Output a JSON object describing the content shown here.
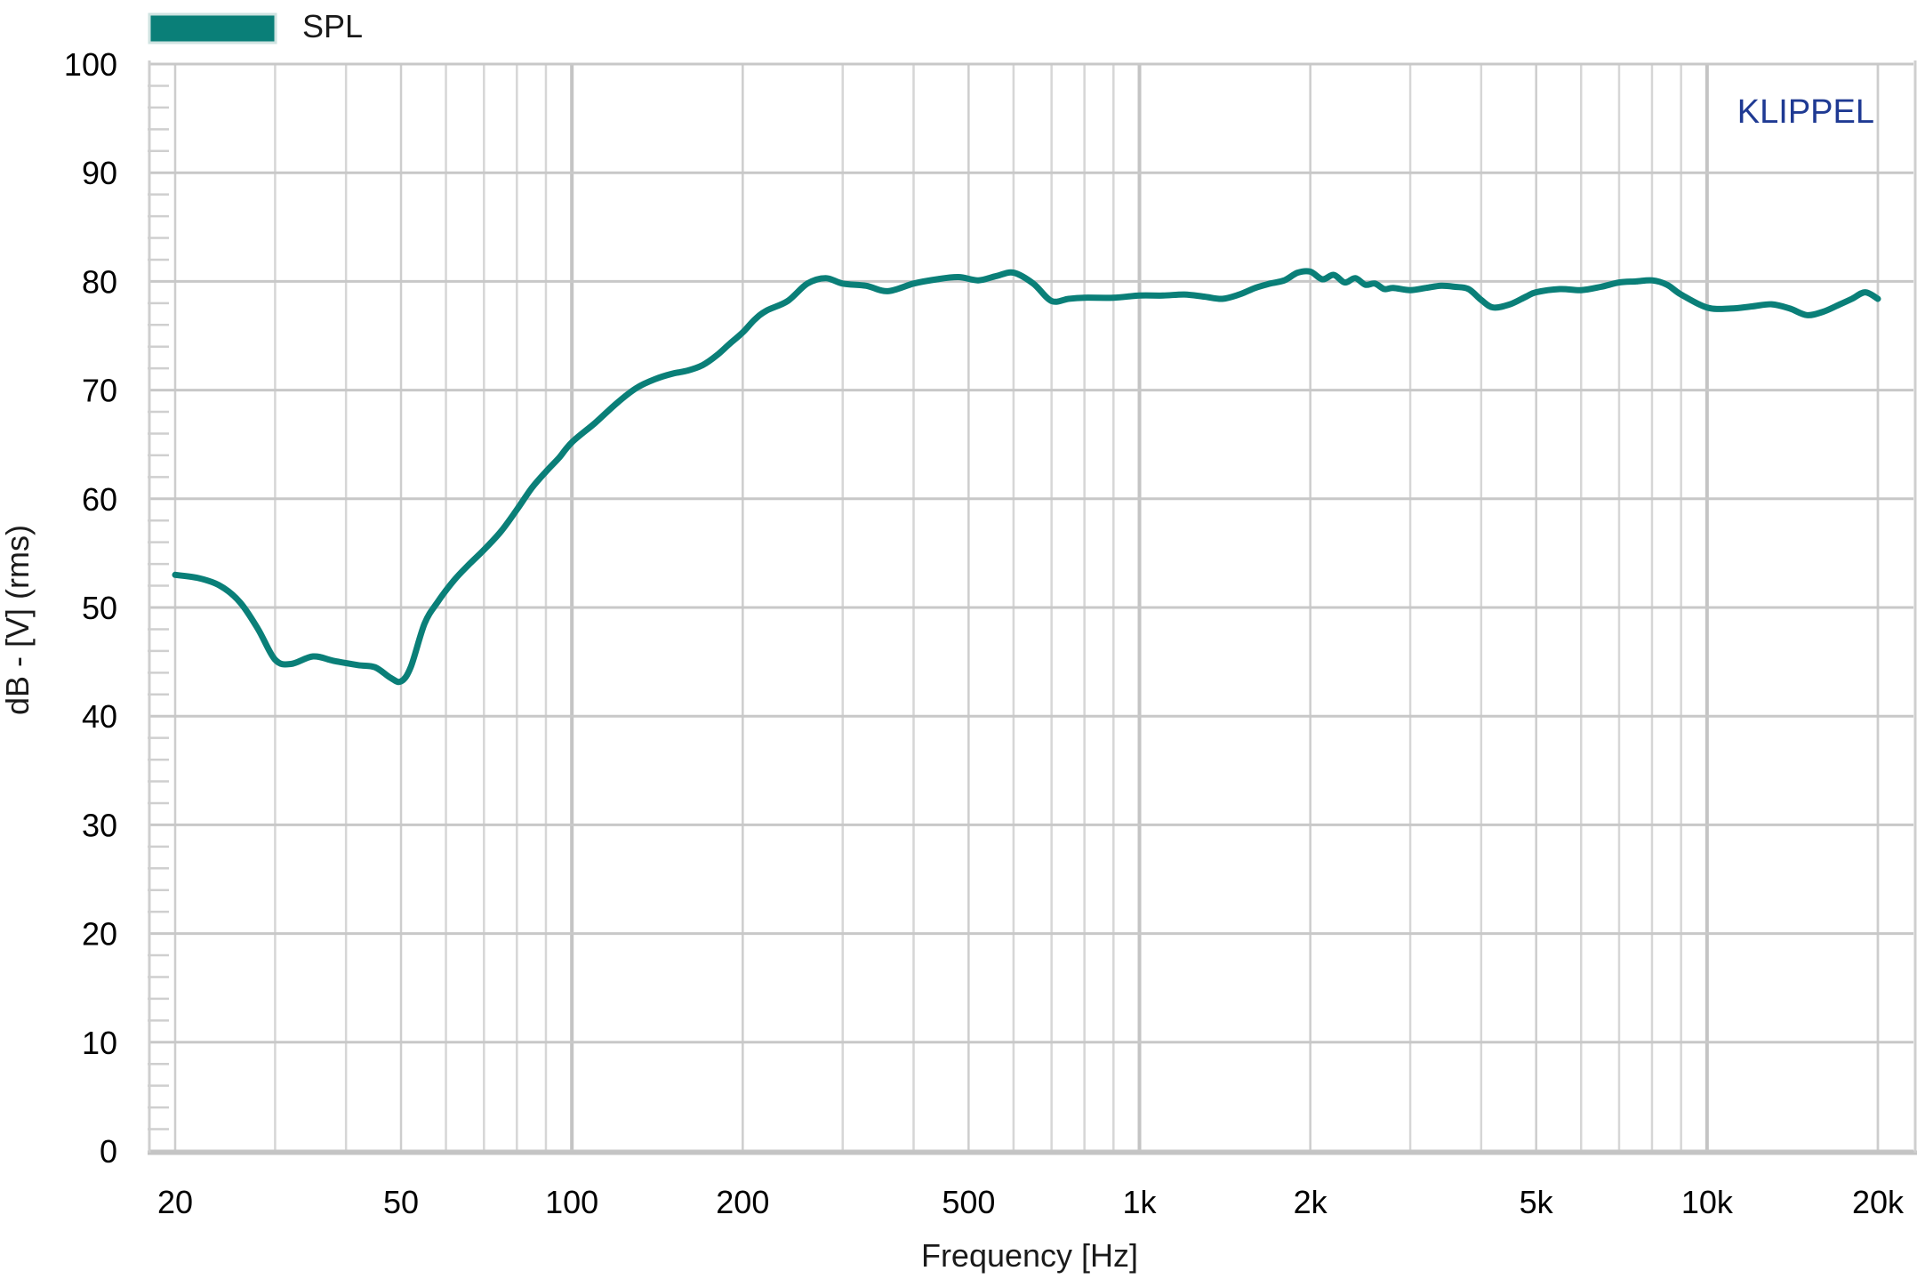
{
  "chart_data": {
    "type": "line",
    "xscale": "log",
    "xlim": [
      20,
      20000
    ],
    "ylim": [
      0,
      100
    ],
    "xlabel": "Frequency [Hz]",
    "ylabel": "dB - [V]  (rms)",
    "grid": true,
    "legend_position": "top-left",
    "brand": "KLIPPEL",
    "brand_color": "#1f3a93",
    "x_ticks": [
      {
        "value": 20,
        "label": "20"
      },
      {
        "value": 50,
        "label": "50"
      },
      {
        "value": 100,
        "label": "100"
      },
      {
        "value": 200,
        "label": "200"
      },
      {
        "value": 500,
        "label": "500"
      },
      {
        "value": 1000,
        "label": "1k"
      },
      {
        "value": 2000,
        "label": "2k"
      },
      {
        "value": 5000,
        "label": "5k"
      },
      {
        "value": 10000,
        "label": "10k"
      },
      {
        "value": 20000,
        "label": "20k"
      }
    ],
    "y_ticks": [
      {
        "value": 0,
        "label": "0"
      },
      {
        "value": 10,
        "label": "10"
      },
      {
        "value": 20,
        "label": "20"
      },
      {
        "value": 30,
        "label": "30"
      },
      {
        "value": 40,
        "label": "40"
      },
      {
        "value": 50,
        "label": "50"
      },
      {
        "value": 60,
        "label": "60"
      },
      {
        "value": 70,
        "label": "70"
      },
      {
        "value": 80,
        "label": "80"
      },
      {
        "value": 90,
        "label": "90"
      },
      {
        "value": 100,
        "label": "100"
      }
    ],
    "series": [
      {
        "name": "SPL",
        "color": "#0a7f78",
        "x": [
          20,
          22,
          24,
          26,
          28,
          30,
          32,
          35,
          38,
          42,
          45,
          48,
          50,
          52,
          55,
          58,
          62,
          66,
          70,
          75,
          80,
          85,
          90,
          95,
          100,
          110,
          120,
          130,
          140,
          150,
          160,
          170,
          180,
          190,
          200,
          210,
          220,
          240,
          260,
          280,
          300,
          330,
          360,
          400,
          440,
          480,
          520,
          560,
          600,
          650,
          700,
          750,
          800,
          900,
          1000,
          1100,
          1200,
          1300,
          1400,
          1500,
          1600,
          1700,
          1800,
          1900,
          2000,
          2100,
          2200,
          2300,
          2400,
          2500,
          2600,
          2700,
          2800,
          3000,
          3200,
          3400,
          3600,
          3800,
          4000,
          4200,
          4500,
          4800,
          5000,
          5500,
          6000,
          6500,
          7000,
          7500,
          8000,
          8500,
          9000,
          10000,
          11000,
          12000,
          13000,
          14000,
          15000,
          16000,
          17000,
          18000,
          19000,
          20000
        ],
        "y": [
          53,
          52.7,
          52,
          50.5,
          48,
          45.2,
          44.8,
          45.5,
          45.1,
          44.7,
          44.5,
          43.5,
          43.2,
          44.5,
          48.5,
          50.5,
          52.5,
          54,
          55.3,
          57,
          59,
          61,
          62.5,
          63.8,
          65.2,
          67,
          68.8,
          70.2,
          71,
          71.5,
          71.8,
          72.3,
          73.2,
          74.3,
          75.3,
          76.5,
          77.3,
          78.2,
          79.8,
          80.3,
          79.8,
          79.6,
          79.1,
          79.8,
          80.2,
          80.4,
          80.1,
          80.5,
          80.8,
          79.8,
          78.2,
          78.4,
          78.5,
          78.5,
          78.7,
          78.7,
          78.8,
          78.6,
          78.4,
          78.8,
          79.4,
          79.8,
          80.1,
          80.8,
          80.9,
          80.2,
          80.6,
          79.9,
          80.3,
          79.7,
          79.8,
          79.3,
          79.4,
          79.2,
          79.4,
          79.6,
          79.5,
          79.3,
          78.3,
          77.6,
          77.9,
          78.6,
          79.0,
          79.3,
          79.2,
          79.5,
          79.9,
          80.0,
          80.1,
          79.7,
          78.8,
          77.6,
          77.5,
          77.7,
          77.9,
          77.5,
          76.9,
          77.2,
          77.8,
          78.4,
          79.0,
          78.4
        ]
      }
    ]
  }
}
